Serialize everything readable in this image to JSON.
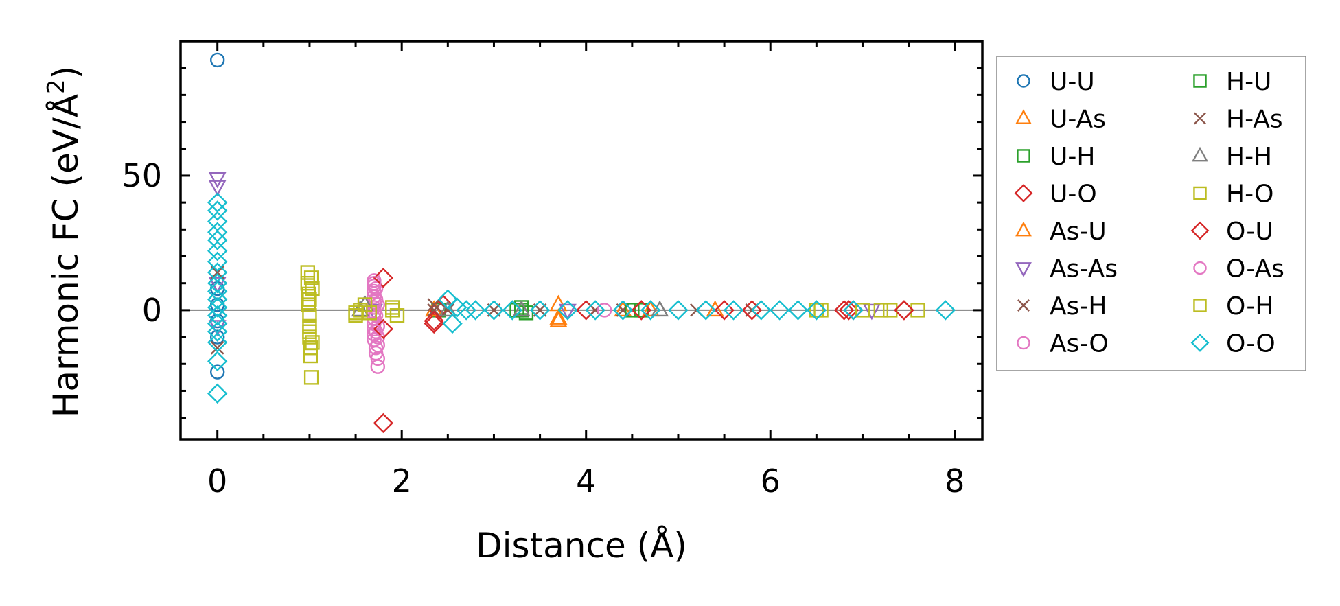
{
  "chart_data": {
    "type": "scatter",
    "xlabel": "Distance (Å)",
    "ylabel_main": "Harmonic FC (eV/Å",
    "ylabel_sup": "2",
    "ylabel_close": ")",
    "xlim": [
      -0.4,
      8.3
    ],
    "ylim": [
      -48,
      100
    ],
    "xticks": [
      0,
      2,
      4,
      6,
      8
    ],
    "xtick_labels": [
      "0",
      "2",
      "4",
      "6",
      "8"
    ],
    "yticks": [
      0,
      50
    ],
    "ytick_labels": [
      "0",
      "50"
    ],
    "zero_line": true,
    "legend_position": "right",
    "series": [
      {
        "name": "U-U",
        "marker": "circle",
        "color": "#1f77b4",
        "x": [
          0,
          0,
          0,
          0,
          0,
          0
        ],
        "y": [
          93,
          -23,
          2,
          -4,
          8,
          -10
        ]
      },
      {
        "name": "U-As",
        "marker": "triangle-up",
        "color": "#ff7f0e",
        "x": [
          2.35,
          3.7,
          3.7,
          4.4,
          5.4
        ],
        "y": [
          0,
          2,
          -4,
          0,
          0
        ]
      },
      {
        "name": "U-H",
        "marker": "square",
        "color": "#2ca02c",
        "x": [
          2.4,
          3.3,
          3.35,
          4.6
        ],
        "y": [
          0,
          0,
          -1,
          0
        ]
      },
      {
        "name": "U-O",
        "marker": "diamond",
        "color": "#d62728",
        "x": [
          2.35,
          2.4,
          2.45,
          4.0,
          4.6,
          5.5,
          6.85,
          7.45
        ],
        "y": [
          -5,
          0,
          2,
          0,
          0,
          0,
          0,
          0
        ]
      },
      {
        "name": "As-U",
        "marker": "triangle-up",
        "color": "#ff7f0e",
        "x": [
          2.35,
          3.7,
          4.7
        ],
        "y": [
          0,
          -3,
          0
        ]
      },
      {
        "name": "As-As",
        "marker": "triangle-down",
        "color": "#9467bd",
        "x": [
          0,
          0,
          0,
          0,
          1.7,
          3.8,
          7.1
        ],
        "y": [
          49,
          46,
          10,
          -6,
          0,
          0,
          0
        ]
      },
      {
        "name": "As-H",
        "marker": "x",
        "color": "#8c564b",
        "x": [
          0,
          0,
          2.35,
          2.5,
          3.0,
          4.4,
          5.8
        ],
        "y": [
          -14,
          14,
          2,
          0,
          0,
          0,
          0
        ]
      },
      {
        "name": "As-O",
        "marker": "circle",
        "color": "#e377c2",
        "x": [
          1.7,
          1.7,
          1.7,
          1.7,
          1.7,
          1.7,
          1.7,
          1.7,
          1.7,
          1.7,
          1.7,
          1.7,
          1.72,
          1.72,
          1.72,
          1.72,
          1.72,
          1.74,
          1.74,
          1.74,
          1.74,
          1.74
        ],
        "y": [
          11,
          9,
          7,
          5,
          3,
          1,
          -1,
          -3,
          -5,
          -7,
          -9,
          -11,
          -14,
          -16,
          8,
          4,
          -2,
          -6,
          -10,
          -13,
          -21,
          2
        ]
      },
      {
        "name": "H-U",
        "marker": "square",
        "color": "#2ca02c",
        "x": [
          3.25,
          3.3,
          4.5
        ],
        "y": [
          0,
          1,
          0
        ]
      },
      {
        "name": "H-As",
        "marker": "x",
        "color": "#8c564b",
        "x": [
          2.35,
          3.5,
          4.1,
          5.2
        ],
        "y": [
          0,
          0,
          0,
          0
        ]
      },
      {
        "name": "H-H",
        "marker": "triangle-up",
        "color": "#7f7f7f",
        "x": [
          1.55,
          1.6,
          2.5,
          3.3,
          4.8
        ],
        "y": [
          0,
          2,
          0,
          0,
          0
        ]
      },
      {
        "name": "H-O",
        "marker": "square",
        "color": "#bcbd22",
        "x": [
          0.98,
          0.98,
          0.99,
          0.99,
          1.0,
          1.0,
          1.0,
          1.01,
          1.01,
          1.02,
          1.02,
          1.03,
          1.03,
          1.5,
          1.55,
          1.6,
          1.65,
          1.9,
          1.95,
          6.55,
          7.0,
          7.3,
          7.6
        ],
        "y": [
          14,
          10,
          6,
          2,
          -2,
          -6,
          -10,
          -14,
          -17,
          -25,
          12,
          8,
          -12,
          -2,
          0,
          2,
          -1,
          0,
          -2,
          0,
          0,
          0,
          0
        ]
      },
      {
        "name": "O-U",
        "marker": "diamond",
        "color": "#d62728",
        "x": [
          1.8,
          1.8,
          1.8,
          2.35,
          4.6,
          5.8,
          6.8,
          6.9,
          7.45
        ],
        "y": [
          12,
          -7,
          -42,
          -4,
          0,
          0,
          0,
          0,
          0
        ]
      },
      {
        "name": "O-As",
        "marker": "circle",
        "color": "#e377c2",
        "x": [
          1.7,
          1.72,
          1.74,
          4.2
        ],
        "y": [
          10,
          -8,
          -18,
          0
        ]
      },
      {
        "name": "O-H",
        "marker": "square",
        "color": "#bcbd22",
        "x": [
          1.0,
          1.0,
          1.5,
          1.9,
          6.5,
          7.2
        ],
        "y": [
          4,
          -8,
          -1,
          1,
          0,
          0
        ]
      },
      {
        "name": "O-O",
        "marker": "diamond",
        "color": "#17becf",
        "x": [
          0,
          0,
          0,
          0,
          0,
          0,
          0,
          0,
          0,
          0,
          0,
          0,
          0,
          0,
          0,
          0,
          0,
          0,
          2.5,
          2.55,
          2.6,
          2.7,
          2.8,
          3.0,
          3.2,
          3.5,
          3.8,
          4.1,
          4.4,
          4.7,
          5.0,
          5.3,
          5.6,
          5.9,
          6.1,
          6.3,
          6.5,
          6.9,
          7.9
        ],
        "y": [
          40,
          37,
          33,
          29,
          26,
          22,
          18,
          14,
          10,
          7,
          4,
          1,
          -2,
          -5,
          -8,
          -12,
          -19,
          -31,
          4,
          -5,
          1,
          0,
          0,
          0,
          0,
          0,
          0,
          0,
          0,
          0,
          0,
          0,
          0,
          0,
          0,
          0,
          0,
          0,
          0
        ]
      }
    ]
  }
}
